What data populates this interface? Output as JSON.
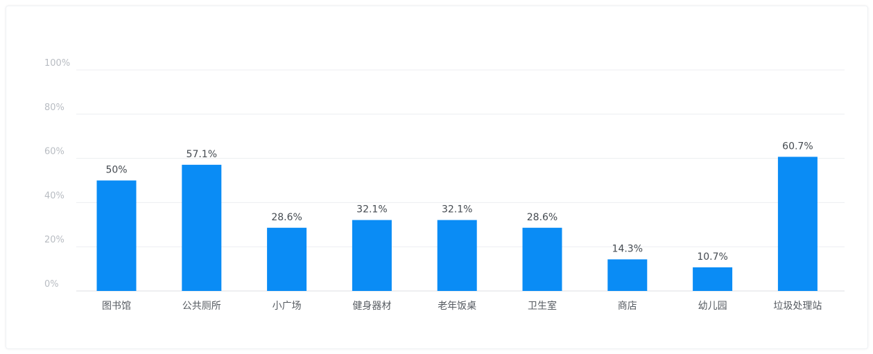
{
  "chart_data": {
    "type": "bar",
    "categories": [
      "图书馆",
      "公共厕所",
      "小广场",
      "健身器材",
      "老年饭桌",
      "卫生室",
      "商店",
      "幼儿园",
      "垃圾处理站"
    ],
    "values": [
      50,
      57.1,
      28.6,
      32.1,
      32.1,
      28.6,
      14.3,
      10.7,
      60.7
    ],
    "data_labels": [
      "50%",
      "57.1%",
      "28.6%",
      "32.1%",
      "32.1%",
      "28.6%",
      "14.3%",
      "10.7%",
      "60.7%"
    ],
    "ylim": [
      0,
      100
    ],
    "yticks": [
      0,
      20,
      40,
      60,
      80,
      100
    ],
    "ytick_labels": [
      "0%",
      "20%",
      "40%",
      "60%",
      "80%",
      "100%"
    ],
    "title": "",
    "xlabel": "",
    "ylabel": "",
    "grid": true,
    "legend": "none",
    "bar_color": "#0a8cf5"
  }
}
